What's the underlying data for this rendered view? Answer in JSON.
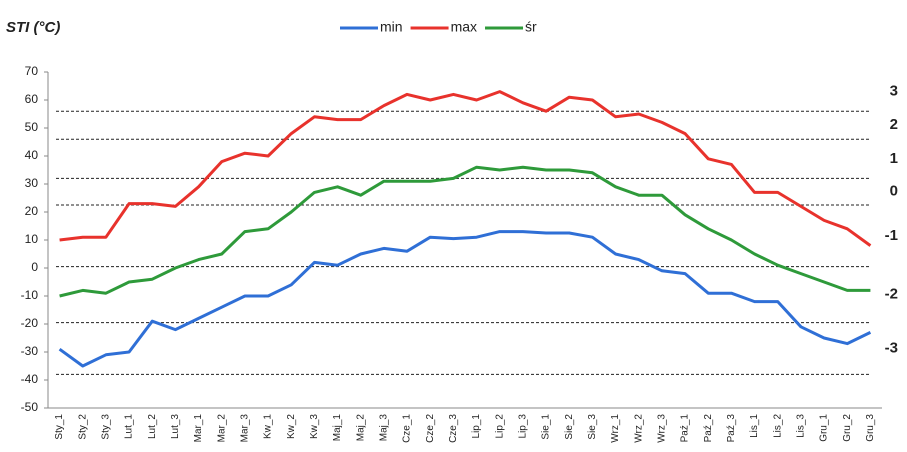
{
  "chart_data": {
    "type": "line",
    "title": "STI (°C)",
    "categories": [
      "Sty_1",
      "Sty_2",
      "Sty_3",
      "Lut_1",
      "Lut_2",
      "Lut_3",
      "Mar_1",
      "Mar_2",
      "Mar_3",
      "Kw_1",
      "Kw_2",
      "Kw_3",
      "Maj_1",
      "Maj_2",
      "Maj_3",
      "Cze_1",
      "Cze_2",
      "Cze_3",
      "Lip_1",
      "Lip_2",
      "Lip_3",
      "Sie_1",
      "Sie_2",
      "Sie_3",
      "Wrz_1",
      "Wrz_2",
      "Wrz_3",
      "Paź_1",
      "Paź_2",
      "Paź_3",
      "Lis_1",
      "Lis_2",
      "Lis_3",
      "Gru_1",
      "Gru_2",
      "Gru_3"
    ],
    "series": [
      {
        "name": "min",
        "color": "#2f6fd6",
        "values": [
          -29,
          -35,
          -31,
          -30,
          -19,
          -22,
          -18,
          -14,
          -10,
          -10,
          -6,
          2,
          1,
          5,
          7,
          6,
          11,
          10.5,
          11,
          13,
          13,
          12.5,
          12.5,
          11,
          5,
          3,
          -1,
          -2,
          -9,
          -9,
          -12,
          -12,
          -21,
          -25,
          -27,
          -23
        ]
      },
      {
        "name": "max",
        "color": "#e8322c",
        "values": [
          10,
          11,
          11,
          23,
          23,
          22,
          29,
          38,
          41,
          40,
          48,
          54,
          53,
          53,
          58,
          62,
          60,
          62,
          60,
          63,
          59,
          56,
          61,
          60,
          54,
          55,
          52,
          48,
          39,
          37,
          27,
          27,
          22,
          17,
          14,
          8
        ]
      },
      {
        "name": "śr",
        "color": "#2e9a3a",
        "values": [
          -10,
          -8,
          -9,
          -5,
          -4,
          0,
          3,
          5,
          13,
          14,
          20,
          27,
          29,
          26,
          31,
          31,
          31,
          32,
          36,
          35,
          36,
          35,
          35,
          34,
          29,
          26,
          26,
          19,
          14,
          10,
          5,
          1,
          -2,
          -5,
          -8,
          -8
        ]
      }
    ],
    "ylim": [
      -50,
      70
    ],
    "yticks": [
      -50,
      -40,
      -30,
      -20,
      -10,
      0,
      10,
      20,
      30,
      40,
      50,
      60,
      70
    ],
    "thresholds": [
      56,
      46,
      32,
      22.5,
      0.5,
      -19.5,
      -38
    ],
    "zones": [
      "3",
      "2",
      "1",
      "0",
      "-1",
      "-2",
      "-3"
    ]
  }
}
